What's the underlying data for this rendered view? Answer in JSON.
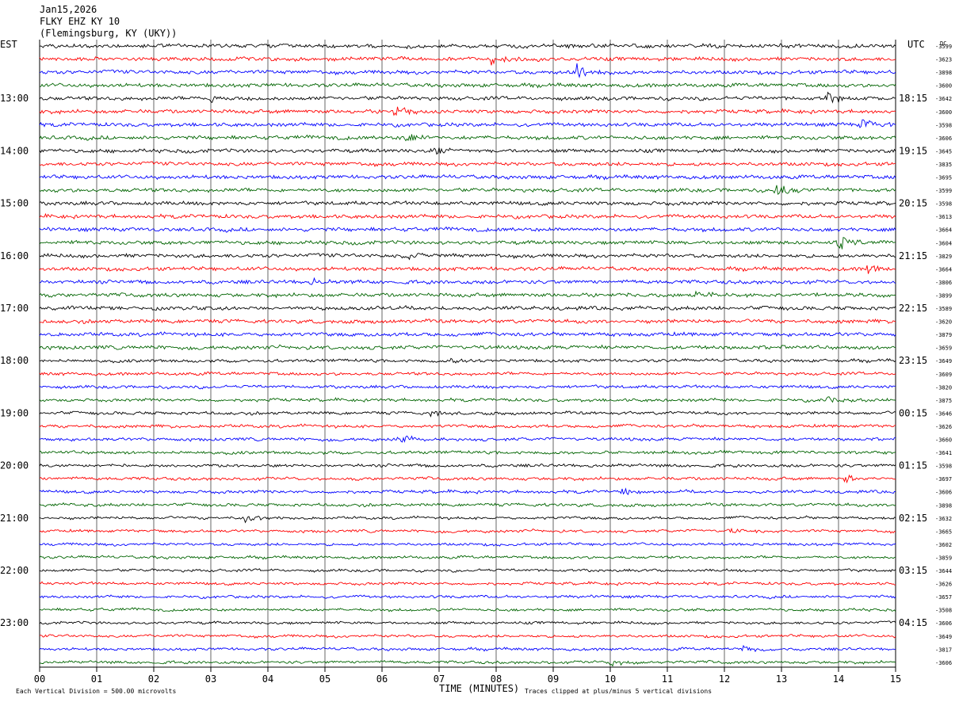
{
  "header": {
    "date": "Jan15,2026",
    "station": "FLKY EHZ KY 10",
    "location": "(Flemingsburg, KY (UKY))"
  },
  "axis": {
    "left_timezone": "EST",
    "right_timezone": "UTC",
    "dc_label": "DC",
    "x_label": "TIME (MINUTES)"
  },
  "footer": {
    "scale_note": "Each Vertical Division =  500.00 microvolts",
    "clip_note": "Traces clipped at plus/minus 5 vertical divisions"
  },
  "colors": {
    "trace_cycle": [
      "#000000",
      "#ff0000",
      "#0000ff",
      "#006400"
    ],
    "grid": "#000000"
  },
  "chart_data": {
    "type": "line",
    "subtype": "helicorder",
    "x_range_minutes": [
      0,
      15
    ],
    "x_ticks": [
      "00",
      "01",
      "02",
      "03",
      "04",
      "05",
      "06",
      "07",
      "08",
      "09",
      "10",
      "11",
      "12",
      "13",
      "14",
      "15"
    ],
    "rows_per_hour": 4,
    "minutes_per_row": 15,
    "left_hour_labels": [
      "13:00",
      "14:00",
      "15:00",
      "16:00",
      "17:00",
      "18:00",
      "19:00",
      "20:00",
      "21:00",
      "22:00",
      "23:00"
    ],
    "right_hour_labels": [
      "18:15",
      "19:15",
      "20:15",
      "21:15",
      "22:15",
      "23:15",
      "00:15",
      "01:15",
      "02:15",
      "03:15",
      "04:15"
    ],
    "row_dc_offsets": [
      "-3599",
      "-3623",
      "-3898",
      "-3600",
      "-3642",
      "-3600",
      "-3598",
      "-3606",
      "-3645",
      "-3835",
      "-3695",
      "-3599",
      "-3598",
      "-3613",
      "-3664",
      "-3604",
      "-3829",
      "-3664",
      "-3806",
      "-3899",
      "-3589",
      "-3620",
      "-3879",
      "-3659",
      "-3649",
      "-3609",
      "-3820",
      "-3875",
      "-3646",
      "-3626",
      "-3660",
      "-3641",
      "-3598",
      "-3697",
      "-3606",
      "-3898",
      "-3632",
      "-3665",
      "-3602",
      "-3859",
      "-3644",
      "-3626",
      "-3657",
      "-3508",
      "-3606",
      "-3649",
      "-3817",
      "-3606"
    ],
    "events": [
      {
        "row": 1,
        "minute": 7.9,
        "amp": 8
      },
      {
        "row": 2,
        "minute": 9.4,
        "amp": 12
      },
      {
        "row": 4,
        "minute": 3.0,
        "amp": 6
      },
      {
        "row": 4,
        "minute": 13.8,
        "amp": 7
      },
      {
        "row": 5,
        "minute": 6.2,
        "amp": 8
      },
      {
        "row": 6,
        "minute": 14.4,
        "amp": 8
      },
      {
        "row": 7,
        "minute": 6.4,
        "amp": 7
      },
      {
        "row": 8,
        "minute": 6.9,
        "amp": 6
      },
      {
        "row": 11,
        "minute": 12.9,
        "amp": 9
      },
      {
        "row": 15,
        "minute": 14.0,
        "amp": 9
      },
      {
        "row": 16,
        "minute": 6.4,
        "amp": 6
      },
      {
        "row": 17,
        "minute": 14.5,
        "amp": 6
      },
      {
        "row": 18,
        "minute": 4.8,
        "amp": 5
      },
      {
        "row": 19,
        "minute": 11.5,
        "amp": 5
      },
      {
        "row": 24,
        "minute": 7.2,
        "amp": 6
      },
      {
        "row": 27,
        "minute": 13.7,
        "amp": 5
      },
      {
        "row": 28,
        "minute": 6.8,
        "amp": 5
      },
      {
        "row": 30,
        "minute": 6.3,
        "amp": 5
      },
      {
        "row": 33,
        "minute": 14.1,
        "amp": 5
      },
      {
        "row": 34,
        "minute": 10.2,
        "amp": 5
      },
      {
        "row": 36,
        "minute": 3.6,
        "amp": 7
      },
      {
        "row": 37,
        "minute": 12.1,
        "amp": 4
      },
      {
        "row": 46,
        "minute": 12.3,
        "amp": 4
      },
      {
        "row": 47,
        "minute": 10.0,
        "amp": 5
      }
    ]
  }
}
